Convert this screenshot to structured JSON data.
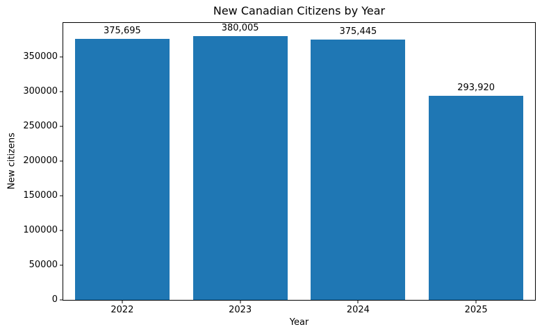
{
  "chart_data": {
    "type": "bar",
    "title": "New Canadian Citizens by Year",
    "xlabel": "Year",
    "ylabel": "New citizens",
    "categories": [
      "2022",
      "2023",
      "2024",
      "2025"
    ],
    "values": [
      375695,
      380005,
      375445,
      293920
    ],
    "bar_labels": [
      "375,695",
      "380,005",
      "375,445",
      "293,920"
    ],
    "yticks": [
      0,
      50000,
      100000,
      150000,
      200000,
      250000,
      300000,
      350000
    ],
    "ylim": [
      0,
      399005
    ],
    "bar_color": "#1f77b4",
    "grid": false,
    "legend": null,
    "bar_width_fraction": 0.8
  }
}
